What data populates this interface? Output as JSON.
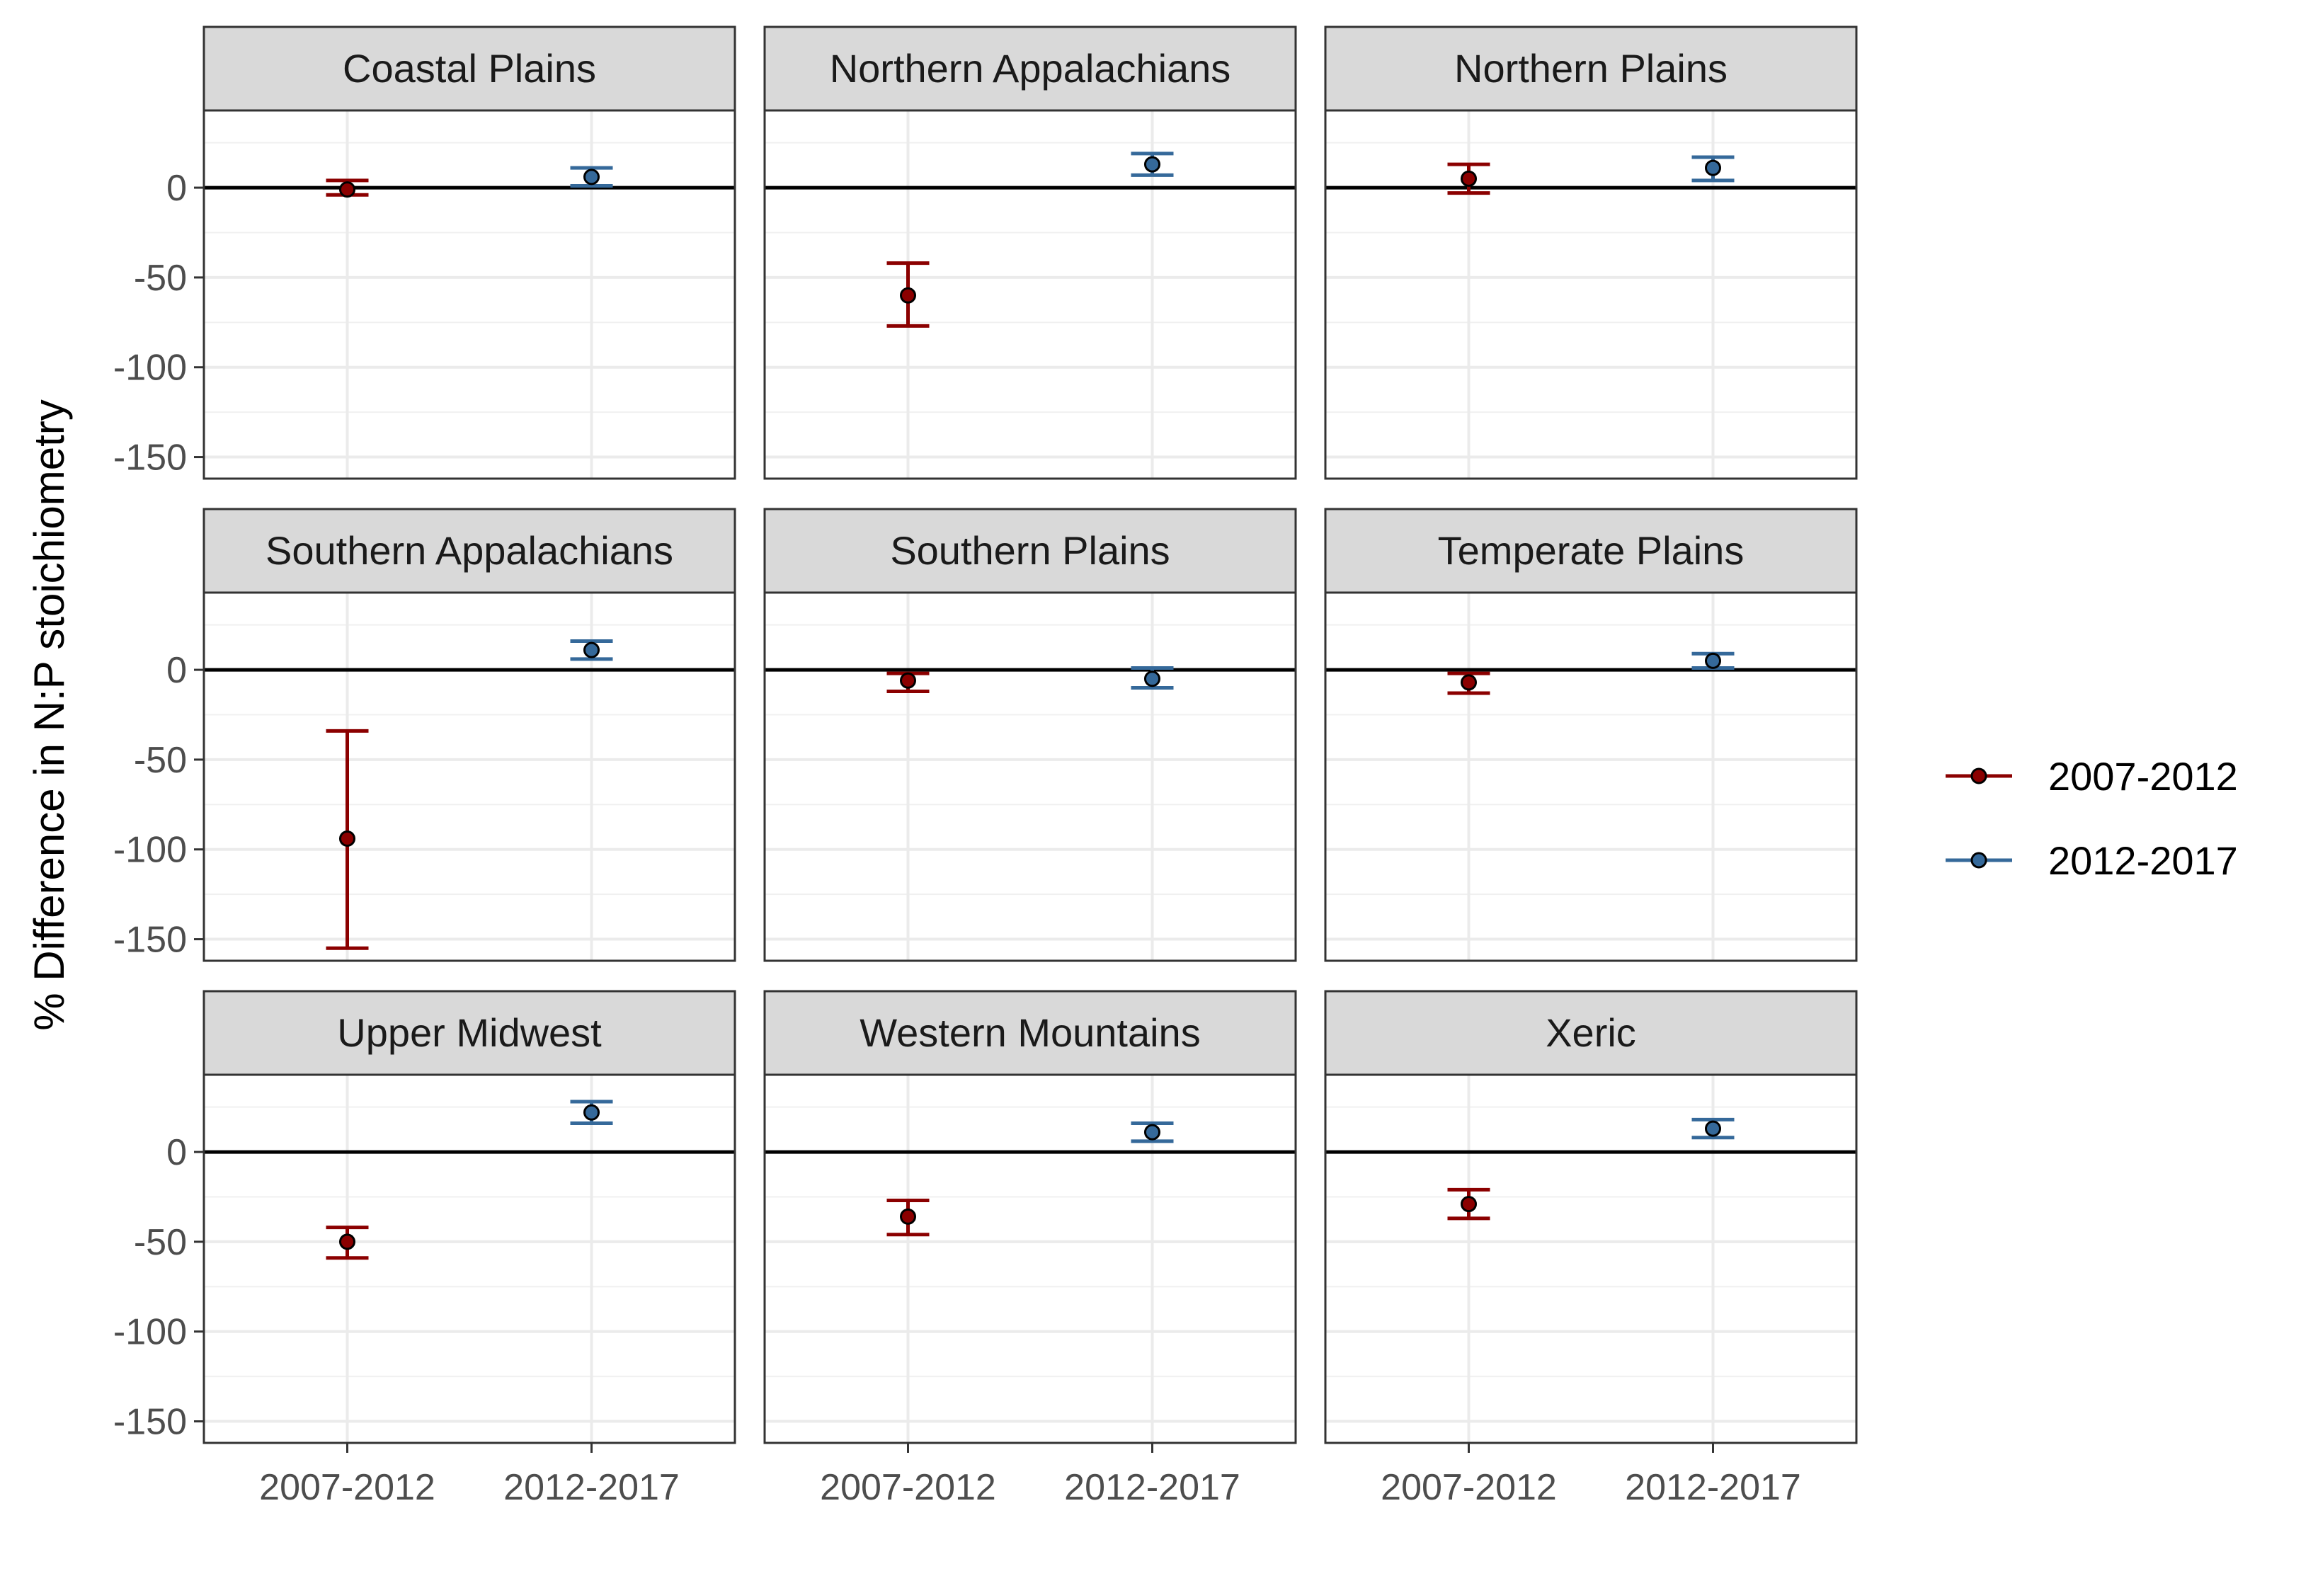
{
  "chart_data": {
    "type": "scatter",
    "ylabel": "% Difference in N:P stoichiometry",
    "xlabel": "",
    "categories": [
      "2007-2012",
      "2012-2017"
    ],
    "ylim": [
      -162,
      43
    ],
    "y_ticks": [
      0,
      -50,
      -100,
      -150
    ],
    "y_tick_labels": [
      "0",
      "-50",
      "-100",
      "-150"
    ],
    "grid": true,
    "reference_line_y": 0,
    "legend_position": "right",
    "series": [
      {
        "name": "2007-2012",
        "color": "#8B0000"
      },
      {
        "name": "2012-2017",
        "color": "#35699A"
      }
    ],
    "panels": [
      {
        "title": "Coastal Plains",
        "points": [
          {
            "category": "2007-2012",
            "y": -1,
            "lower": -4,
            "upper": 4
          },
          {
            "category": "2012-2017",
            "y": 6,
            "lower": 1,
            "upper": 11
          }
        ]
      },
      {
        "title": "Northern Appalachians",
        "points": [
          {
            "category": "2007-2012",
            "y": -60,
            "lower": -77,
            "upper": -42
          },
          {
            "category": "2012-2017",
            "y": 13,
            "lower": 7,
            "upper": 19
          }
        ]
      },
      {
        "title": "Northern Plains",
        "points": [
          {
            "category": "2007-2012",
            "y": 5,
            "lower": -3,
            "upper": 13
          },
          {
            "category": "2012-2017",
            "y": 11,
            "lower": 4,
            "upper": 17
          }
        ]
      },
      {
        "title": "Southern Appalachians",
        "points": [
          {
            "category": "2007-2012",
            "y": -94,
            "lower": -155,
            "upper": -34
          },
          {
            "category": "2012-2017",
            "y": 11,
            "lower": 6,
            "upper": 16
          }
        ]
      },
      {
        "title": "Southern Plains",
        "points": [
          {
            "category": "2007-2012",
            "y": -6,
            "lower": -12,
            "upper": -2
          },
          {
            "category": "2012-2017",
            "y": -5,
            "lower": -10,
            "upper": 1
          }
        ]
      },
      {
        "title": "Temperate Plains",
        "points": [
          {
            "category": "2007-2012",
            "y": -7,
            "lower": -13,
            "upper": -2
          },
          {
            "category": "2012-2017",
            "y": 5,
            "lower": 1,
            "upper": 9
          }
        ]
      },
      {
        "title": "Upper Midwest",
        "points": [
          {
            "category": "2007-2012",
            "y": -50,
            "lower": -59,
            "upper": -42
          },
          {
            "category": "2012-2017",
            "y": 22,
            "lower": 16,
            "upper": 28
          }
        ]
      },
      {
        "title": "Western Mountains",
        "points": [
          {
            "category": "2007-2012",
            "y": -36,
            "lower": -46,
            "upper": -27
          },
          {
            "category": "2012-2017",
            "y": 11,
            "lower": 6,
            "upper": 16
          }
        ]
      },
      {
        "title": "Xeric",
        "points": [
          {
            "category": "2007-2012",
            "y": -29,
            "lower": -37,
            "upper": -21
          },
          {
            "category": "2012-2017",
            "y": 13,
            "lower": 8,
            "upper": 18
          }
        ]
      }
    ]
  }
}
